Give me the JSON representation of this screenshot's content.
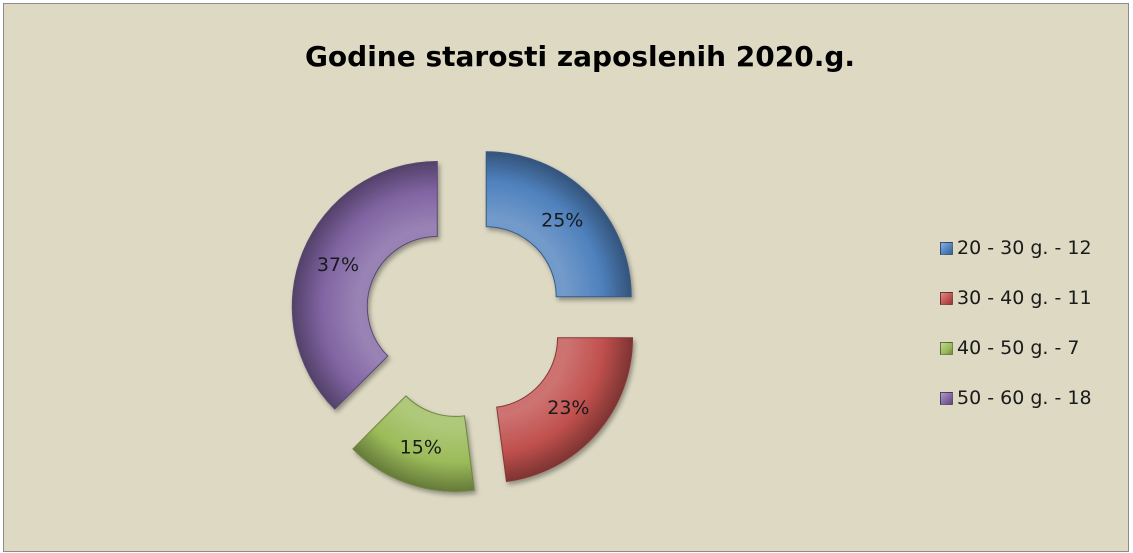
{
  "chart_data": {
    "type": "pie",
    "title": "Godine starosti zaposlenih 2020.g.",
    "categories": [
      "20 - 30 g. - 12",
      "30 - 40 g. - 11",
      "40 - 50 g. - 7",
      "50 - 60 g. - 18"
    ],
    "values": [
      12,
      11,
      7,
      18
    ],
    "data_labels": [
      "25%",
      "23%",
      "15%",
      "37%"
    ],
    "colors": [
      "#4f81bd",
      "#c0504d",
      "#9bbb59",
      "#8064a2"
    ],
    "legend_position": "right"
  }
}
